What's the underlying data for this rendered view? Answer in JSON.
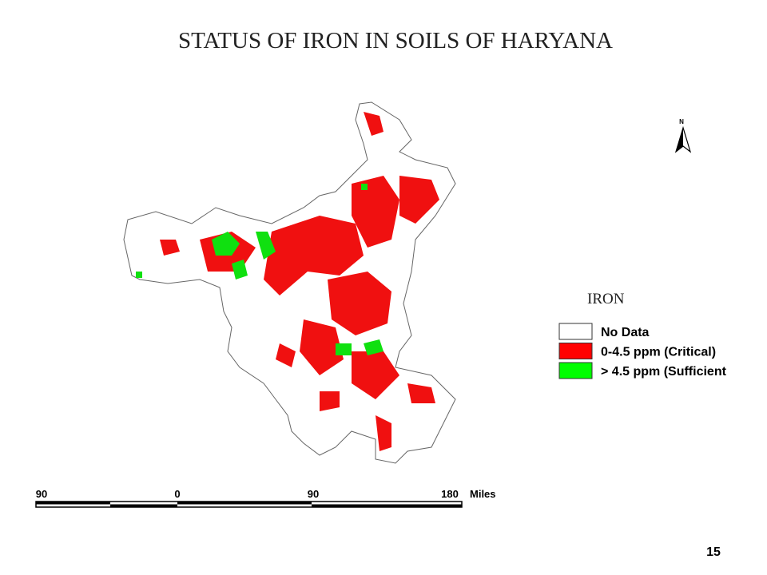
{
  "title": "STATUS OF IRON IN SOILS OF HARYANA",
  "north_label": "N",
  "legend": {
    "title": "IRON",
    "items": [
      {
        "label": "No Data",
        "color": "#ffffff"
      },
      {
        "label": "0-4.5 ppm (Critical)",
        "color": "#ff0000"
      },
      {
        "label": "> 4.5 ppm (Sufficient",
        "color": "#00ff00"
      }
    ]
  },
  "scale_bar": {
    "labels": [
      "90",
      "0",
      "90",
      "180"
    ],
    "unit": "Miles"
  },
  "page_number": "15"
}
